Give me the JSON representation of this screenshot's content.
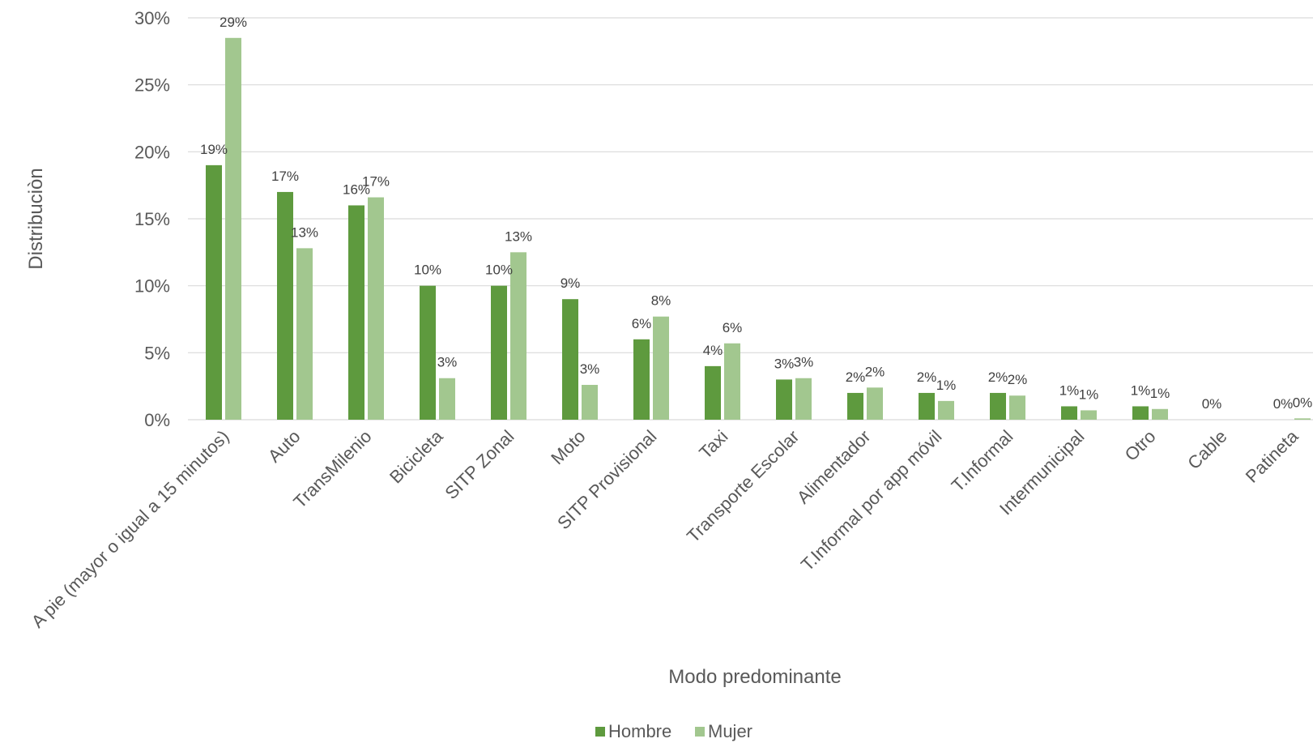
{
  "chart_data": {
    "type": "bar",
    "title": "",
    "xlabel": "Modo predominante",
    "ylabel": "Distribuciòn",
    "ylim": [
      0,
      30
    ],
    "yticks": [
      0,
      5,
      10,
      15,
      20,
      25,
      30
    ],
    "ytick_labels": [
      "0%",
      "5%",
      "10%",
      "15%",
      "20%",
      "25%",
      "30%"
    ],
    "grid": true,
    "legend_position": "bottom",
    "categories": [
      "A pie (mayor o igual a 15 minutos)",
      "Auto",
      "TransMilenio",
      "Bicicleta",
      "SITP Zonal",
      "Moto",
      "SITP Provisional",
      "Taxi",
      "Transporte Escolar",
      "Alimentador",
      "T.Informal por app móvil",
      "T.Informal",
      "Intermunicipal",
      "Otro",
      "Cable",
      "Patineta"
    ],
    "series": [
      {
        "name": "Hombre",
        "color": "#5e9a3e",
        "values": [
          19,
          17,
          16,
          10,
          10,
          9,
          6,
          4,
          3,
          2,
          2,
          2,
          1,
          1,
          0,
          0
        ],
        "labels": [
          "19%",
          "17%",
          "16%",
          "10%",
          "10%",
          "9%",
          "6%",
          "4%",
          "3%",
          "2%",
          "2%",
          "2%",
          "1%",
          "1%",
          "0%",
          "0%"
        ]
      },
      {
        "name": "Mujer",
        "color": "#a2c78f",
        "values": [
          28.5,
          12.8,
          16.6,
          3.1,
          12.5,
          2.6,
          7.7,
          5.7,
          3.1,
          2.4,
          1.4,
          1.8,
          0.7,
          0.8,
          0,
          0.1
        ],
        "labels": [
          "29%",
          "13%",
          "17%",
          "3%",
          "13%",
          "3%",
          "8%",
          "6%",
          "3%",
          "2%",
          "1%",
          "2%",
          "1%",
          "1%",
          "",
          "0%"
        ]
      }
    ]
  }
}
